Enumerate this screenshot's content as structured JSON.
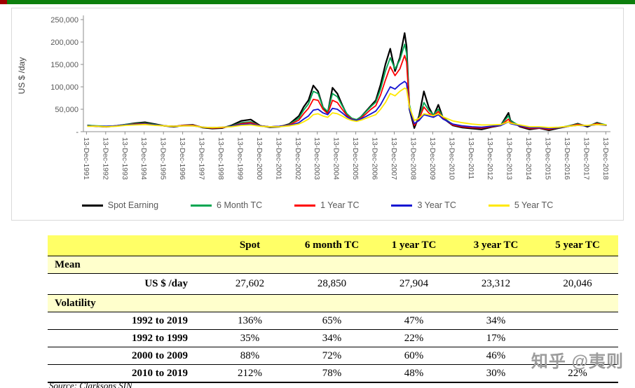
{
  "page": {
    "watermark": "知乎 @夷则",
    "source_note": "Source: Clarksons SIN",
    "accent_bar": {
      "green": "#0d7f0d",
      "red": "#a00000"
    }
  },
  "chart_data": {
    "type": "line",
    "title": "",
    "ylabel": "US $ /day",
    "units_note": "series values in thousand US$/day",
    "ylim": [
      0,
      250
    ],
    "yticks": [
      {
        "v": 0,
        "label": "-"
      },
      {
        "v": 50,
        "label": "50,000"
      },
      {
        "v": 100,
        "label": "100,000"
      },
      {
        "v": 150,
        "label": "150,000"
      },
      {
        "v": 200,
        "label": "200,000"
      },
      {
        "v": 250,
        "label": "250,000"
      }
    ],
    "xlim": [
      1991.8,
      2019.2
    ],
    "xtick_start": 1991.96,
    "xtick_labels": [
      "13-Dec-1991",
      "13-Dec-1992",
      "13-Dec-1993",
      "13-Dec-1994",
      "13-Dec-1995",
      "13-Dec-1996",
      "13-Dec-1997",
      "13-Dec-1998",
      "13-Dec-1999",
      "13-Dec-2000",
      "13-Dec-2001",
      "13-Dec-2002",
      "13-Dec-2003",
      "13-Dec-2004",
      "13-Dec-2005",
      "13-Dec-2006",
      "13-Dec-2007",
      "13-Dec-2008",
      "13-Dec-2009",
      "13-Dec-2010",
      "13-Dec-2011",
      "13-Dec-2012",
      "13-Dec-2013",
      "13-Dec-2014",
      "13-Dec-2015",
      "13-Dec-2016",
      "13-Dec-2017",
      "13-Dec-2018"
    ],
    "x": [
      1992,
      1992.5,
      1993,
      1993.5,
      1994,
      1994.5,
      1995,
      1995.5,
      1996,
      1996.5,
      1997,
      1997.5,
      1998,
      1998.5,
      1999,
      1999.5,
      2000,
      2000.5,
      2001,
      2001.5,
      2002,
      2002.5,
      2003,
      2003.25,
      2003.5,
      2003.75,
      2004,
      2004.25,
      2004.5,
      2004.75,
      2005,
      2005.25,
      2005.5,
      2005.75,
      2006,
      2006.25,
      2006.5,
      2006.75,
      2007,
      2007.25,
      2007.5,
      2007.75,
      2008,
      2008.25,
      2008.5,
      2008.6,
      2008.75,
      2009,
      2009.25,
      2009.5,
      2009.75,
      2010,
      2010.25,
      2010.5,
      2011,
      2011.5,
      2012,
      2012.5,
      2013,
      2013.5,
      2013.9,
      2014,
      2014.5,
      2015,
      2015.5,
      2016,
      2016.5,
      2017,
      2017.5,
      2018,
      2018.5,
      2019
    ],
    "series": [
      {
        "name": "Spot Earning",
        "color": "#000000",
        "width": 2.2,
        "values": [
          14,
          12,
          11,
          13,
          16,
          19,
          21,
          17,
          13,
          11,
          14,
          15,
          9,
          7,
          8,
          14,
          24,
          27,
          13,
          10,
          11,
          17,
          35,
          55,
          70,
          103,
          90,
          55,
          42,
          98,
          85,
          60,
          38,
          28,
          24,
          34,
          46,
          58,
          70,
          105,
          150,
          185,
          135,
          165,
          220,
          190,
          50,
          8,
          35,
          90,
          55,
          35,
          60,
          30,
          14,
          9,
          7,
          5,
          10,
          14,
          42,
          25,
          11,
          5,
          8,
          3,
          8,
          12,
          18,
          11,
          20,
          14
        ]
      },
      {
        "name": "6 Month TC",
        "color": "#00a651",
        "width": 1.8,
        "values": [
          14,
          13,
          12,
          13,
          16,
          18,
          19,
          16,
          13,
          12,
          14,
          14,
          10,
          8,
          9,
          13,
          20,
          22,
          13,
          11,
          12,
          16,
          30,
          48,
          62,
          90,
          85,
          55,
          45,
          85,
          78,
          58,
          40,
          30,
          27,
          34,
          45,
          56,
          66,
          95,
          135,
          165,
          140,
          160,
          195,
          175,
          60,
          15,
          30,
          65,
          48,
          38,
          50,
          32,
          16,
          12,
          9,
          8,
          12,
          15,
          35,
          24,
          13,
          7,
          9,
          5,
          9,
          13,
          17,
          13,
          19,
          15
        ]
      },
      {
        "name": "1 Year TC",
        "color": "#ff0000",
        "width": 1.8,
        "values": [
          13,
          12,
          11,
          13,
          15,
          17,
          18,
          15,
          13,
          12,
          14,
          14,
          10,
          8,
          9,
          12,
          18,
          20,
          13,
          11,
          12,
          15,
          26,
          40,
          52,
          72,
          70,
          50,
          40,
          70,
          65,
          50,
          36,
          28,
          25,
          31,
          40,
          50,
          58,
          82,
          115,
          145,
          125,
          140,
          170,
          155,
          55,
          14,
          28,
          55,
          42,
          35,
          45,
          30,
          15,
          11,
          9,
          8,
          11,
          14,
          28,
          21,
          12,
          7,
          8,
          5,
          9,
          12,
          16,
          13,
          18,
          14
        ]
      },
      {
        "name": "3 Year TC",
        "color": "#1414d2",
        "width": 1.8,
        "values": [
          13,
          12,
          12,
          13,
          15,
          16,
          17,
          15,
          13,
          12,
          13,
          13,
          10,
          9,
          10,
          12,
          16,
          17,
          13,
          11,
          12,
          14,
          20,
          28,
          35,
          48,
          50,
          42,
          38,
          52,
          50,
          42,
          33,
          27,
          25,
          29,
          34,
          40,
          46,
          60,
          80,
          100,
          95,
          105,
          112,
          108,
          50,
          18,
          25,
          38,
          35,
          32,
          38,
          28,
          17,
          13,
          11,
          10,
          12,
          14,
          22,
          18,
          13,
          9,
          9,
          7,
          9,
          12,
          14,
          13,
          16,
          14
        ]
      },
      {
        "name": "5 Year TC",
        "color": "#ffe800",
        "width": 1.8,
        "values": [
          12,
          12,
          11,
          12,
          14,
          15,
          16,
          14,
          13,
          12,
          13,
          13,
          10,
          9,
          10,
          11,
          14,
          15,
          12,
          11,
          11,
          13,
          17,
          22,
          28,
          38,
          40,
          35,
          32,
          42,
          40,
          35,
          29,
          25,
          23,
          26,
          30,
          34,
          38,
          50,
          65,
          85,
          80,
          90,
          97,
          95,
          55,
          25,
          30,
          40,
          38,
          36,
          40,
          33,
          24,
          20,
          17,
          15,
          15,
          16,
          22,
          19,
          15,
          11,
          11,
          9,
          10,
          12,
          14,
          14,
          16,
          15
        ]
      }
    ]
  },
  "table": {
    "header_color": "#ffff66",
    "band_color": "#ffffcc",
    "header": [
      "",
      "Spot",
      "6 month TC",
      "1 year TC",
      "3 year TC",
      "5 year TC"
    ],
    "mean_section": "Mean",
    "mean_row": {
      "label": "US $ /day",
      "values": [
        "27,602",
        "28,850",
        "27,904",
        "23,312",
        "20,046"
      ]
    },
    "vol_section": "Volatility",
    "vol_rows": [
      {
        "label": "1992 to 2019",
        "values": [
          "136%",
          "65%",
          "47%",
          "34%",
          ""
        ]
      },
      {
        "label": "1992 to 1999",
        "values": [
          "35%",
          "34%",
          "22%",
          "17%",
          ""
        ]
      },
      {
        "label": "2000 to 2009",
        "values": [
          "88%",
          "72%",
          "60%",
          "46%",
          ""
        ]
      },
      {
        "label": "2010 to 2019",
        "values": [
          "212%",
          "78%",
          "48%",
          "30%",
          "22%"
        ]
      }
    ]
  }
}
